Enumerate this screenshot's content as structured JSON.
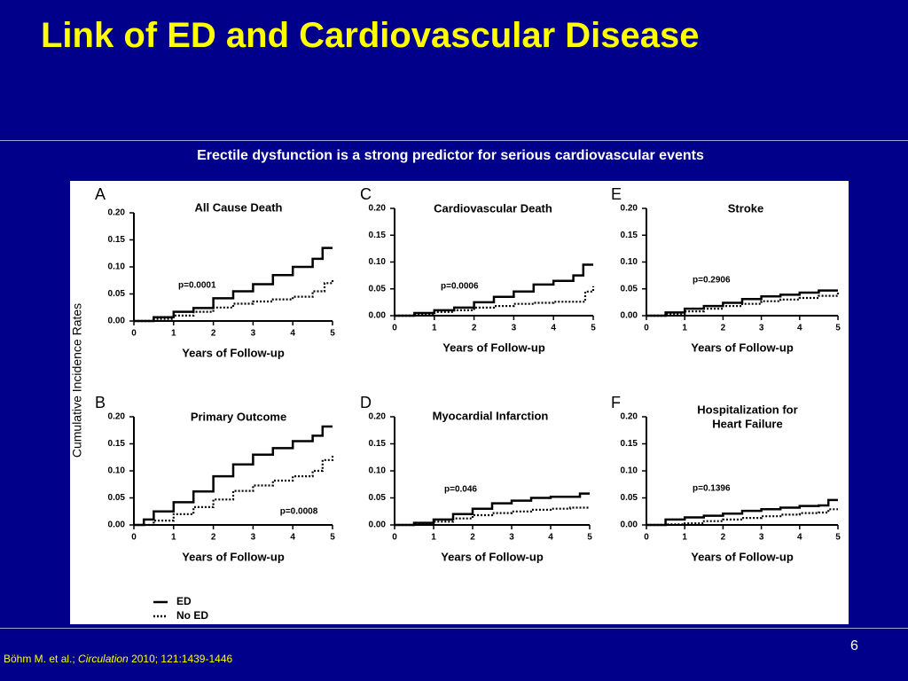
{
  "slide": {
    "title": "Link of ED and Cardiovascular Disease",
    "subtitle": "Erectile dysfunction is a strong predictor for serious cardiovascular events",
    "page_number": "6",
    "citation": {
      "authors": "Böhm M. et al.; ",
      "journal": "Circulation",
      "details": " 2010; 121:1439-1446"
    }
  },
  "colors": {
    "background": "#00008B",
    "title": "#FFFF00",
    "subtitle": "#FFFFFF",
    "panel_bg": "#FFFFFF",
    "ink": "#000000"
  },
  "figure": {
    "shared_ylabel": "Cumulative Incidence Rates",
    "legend": {
      "items": [
        {
          "label": "ED",
          "style": "solid"
        },
        {
          "label": "No ED",
          "style": "dotted"
        }
      ]
    }
  },
  "chart_data": [
    {
      "panel_letter": "A",
      "title": "All Cause Death",
      "type": "line",
      "xlabel": "Years of Follow-up",
      "ylabel": "Cumulative Incidence Rates",
      "xlim": [
        0,
        5
      ],
      "ylim": [
        0,
        0.2
      ],
      "xticks": [
        "0",
        "1",
        "2",
        "3",
        "4",
        "5"
      ],
      "yticks": [
        "0.00",
        "0.05",
        "0.10",
        "0.15",
        "0.20"
      ],
      "pvalue": "p=0.0001",
      "series": [
        {
          "name": "ED",
          "style": "solid",
          "x": [
            0,
            0.5,
            1,
            1.5,
            2,
            2.5,
            3,
            3.5,
            4,
            4.5,
            4.75,
            5
          ],
          "y": [
            0,
            0.007,
            0.017,
            0.024,
            0.042,
            0.055,
            0.068,
            0.085,
            0.1,
            0.115,
            0.135,
            0.135
          ]
        },
        {
          "name": "No ED",
          "style": "dotted",
          "x": [
            0,
            0.5,
            1,
            1.5,
            2,
            2.5,
            3,
            3.5,
            4,
            4.5,
            4.8,
            5
          ],
          "y": [
            0,
            0.004,
            0.01,
            0.017,
            0.025,
            0.032,
            0.036,
            0.04,
            0.045,
            0.055,
            0.07,
            0.078
          ]
        }
      ]
    },
    {
      "panel_letter": "B",
      "title": "Primary Outcome",
      "type": "line",
      "xlabel": "Years of Follow-up",
      "ylabel": "Cumulative Incidence Rates",
      "xlim": [
        0,
        5
      ],
      "ylim": [
        0,
        0.2
      ],
      "xticks": [
        "0",
        "1",
        "2",
        "3",
        "4",
        "5"
      ],
      "yticks": [
        "0.00",
        "0.05",
        "0.10",
        "0.15",
        "0.20"
      ],
      "pvalue": "p=0.0008",
      "series": [
        {
          "name": "ED",
          "style": "solid",
          "x": [
            0,
            0.25,
            0.5,
            1,
            1.5,
            2,
            2.5,
            3,
            3.5,
            4,
            4.5,
            4.75,
            5
          ],
          "y": [
            0,
            0.01,
            0.025,
            0.042,
            0.062,
            0.09,
            0.112,
            0.13,
            0.142,
            0.155,
            0.165,
            0.182,
            0.182
          ]
        },
        {
          "name": "No ED",
          "style": "dotted",
          "x": [
            0,
            0.5,
            1,
            1.5,
            2,
            2.5,
            3,
            3.5,
            4,
            4.5,
            4.75,
            5
          ],
          "y": [
            0,
            0.008,
            0.02,
            0.033,
            0.047,
            0.063,
            0.073,
            0.082,
            0.09,
            0.1,
            0.12,
            0.13
          ]
        }
      ]
    },
    {
      "panel_letter": "C",
      "title": "Cardiovascular Death",
      "type": "line",
      "xlabel": "Years of Follow-up",
      "ylabel": "Cumulative Incidence Rates",
      "xlim": [
        0,
        5
      ],
      "ylim": [
        0,
        0.2
      ],
      "xticks": [
        "0",
        "1",
        "2",
        "3",
        "4",
        "5"
      ],
      "yticks": [
        "0.00",
        "0.05",
        "0.10",
        "0.15",
        "0.20"
      ],
      "pvalue": "p=0.0006",
      "series": [
        {
          "name": "ED",
          "style": "solid",
          "x": [
            0,
            0.5,
            1,
            1.5,
            2,
            2.5,
            3,
            3.5,
            4,
            4.5,
            4.75,
            5
          ],
          "y": [
            0,
            0.005,
            0.01,
            0.015,
            0.025,
            0.035,
            0.045,
            0.058,
            0.065,
            0.075,
            0.095,
            0.095
          ]
        },
        {
          "name": "No ED",
          "style": "dotted",
          "x": [
            0,
            0.5,
            1,
            1.5,
            2,
            2.5,
            3,
            3.5,
            4,
            4.5,
            4.8,
            5
          ],
          "y": [
            0,
            0.003,
            0.007,
            0.01,
            0.015,
            0.018,
            0.022,
            0.024,
            0.026,
            0.026,
            0.045,
            0.055
          ]
        }
      ]
    },
    {
      "panel_letter": "D",
      "title": "Myocardial Infarction",
      "type": "line",
      "xlabel": "Years of Follow-up",
      "ylabel": "Cumulative Incidence Rates",
      "xlim": [
        0,
        5
      ],
      "ylim": [
        0,
        0.2
      ],
      "xticks": [
        "0",
        "1",
        "2",
        "3",
        "4",
        "5"
      ],
      "yticks": [
        "0.00",
        "0.05",
        "0.10",
        "0.15",
        "0.20"
      ],
      "pvalue": "p=0.046",
      "series": [
        {
          "name": "ED",
          "style": "solid",
          "x": [
            0,
            0.5,
            1,
            1.5,
            2,
            2.5,
            3,
            3.5,
            4,
            4.5,
            4.75,
            5
          ],
          "y": [
            0,
            0.004,
            0.01,
            0.02,
            0.03,
            0.04,
            0.045,
            0.05,
            0.052,
            0.052,
            0.058,
            0.058
          ]
        },
        {
          "name": "No ED",
          "style": "dotted",
          "x": [
            0,
            0.5,
            1,
            1.5,
            2,
            2.5,
            3,
            3.5,
            4,
            4.5,
            5
          ],
          "y": [
            0,
            0.002,
            0.006,
            0.012,
            0.018,
            0.022,
            0.025,
            0.028,
            0.03,
            0.032,
            0.032
          ]
        }
      ]
    },
    {
      "panel_letter": "E",
      "title": "Stroke",
      "type": "line",
      "xlabel": "Years of Follow-up",
      "ylabel": "Cumulative Incidence Rates",
      "xlim": [
        0,
        5
      ],
      "ylim": [
        0,
        0.2
      ],
      "xticks": [
        "0",
        "1",
        "2",
        "3",
        "4",
        "5"
      ],
      "yticks": [
        "0.00",
        "0.05",
        "0.10",
        "0.15",
        "0.20"
      ],
      "pvalue": "p=0.2906",
      "series": [
        {
          "name": "ED",
          "style": "solid",
          "x": [
            0,
            0.5,
            1,
            1.5,
            2,
            2.5,
            3,
            3.5,
            4,
            4.5,
            5
          ],
          "y": [
            0,
            0.006,
            0.013,
            0.018,
            0.024,
            0.031,
            0.036,
            0.039,
            0.043,
            0.047,
            0.047
          ]
        },
        {
          "name": "No ED",
          "style": "dotted",
          "x": [
            0,
            0.5,
            1,
            1.5,
            2,
            2.5,
            3,
            3.5,
            4,
            4.5,
            5
          ],
          "y": [
            0,
            0.003,
            0.008,
            0.013,
            0.018,
            0.022,
            0.027,
            0.03,
            0.033,
            0.037,
            0.045
          ]
        }
      ]
    },
    {
      "panel_letter": "F",
      "title": "Hospitalization for\nHeart Failure",
      "type": "line",
      "xlabel": "Years of Follow-up",
      "ylabel": "Cumulative Incidence Rates",
      "xlim": [
        0,
        5
      ],
      "ylim": [
        0,
        0.2
      ],
      "xticks": [
        "0",
        "1",
        "2",
        "3",
        "4",
        "5"
      ],
      "yticks": [
        "0.00",
        "0.05",
        "0.10",
        "0.15",
        "0.20"
      ],
      "pvalue": "p=0.1396",
      "series": [
        {
          "name": "ED",
          "style": "solid",
          "x": [
            0,
            0.5,
            1,
            1.5,
            2,
            2.5,
            3,
            3.5,
            4,
            4.5,
            4.75,
            5
          ],
          "y": [
            0,
            0.01,
            0.014,
            0.017,
            0.021,
            0.026,
            0.029,
            0.032,
            0.035,
            0.036,
            0.046,
            0.046
          ]
        },
        {
          "name": "No ED",
          "style": "dotted",
          "x": [
            0,
            0.5,
            1,
            1.5,
            2,
            2.5,
            3,
            3.5,
            4,
            4.5,
            4.75,
            5
          ],
          "y": [
            0,
            0.001,
            0.003,
            0.007,
            0.01,
            0.013,
            0.016,
            0.019,
            0.022,
            0.023,
            0.029,
            0.029
          ]
        }
      ]
    }
  ]
}
